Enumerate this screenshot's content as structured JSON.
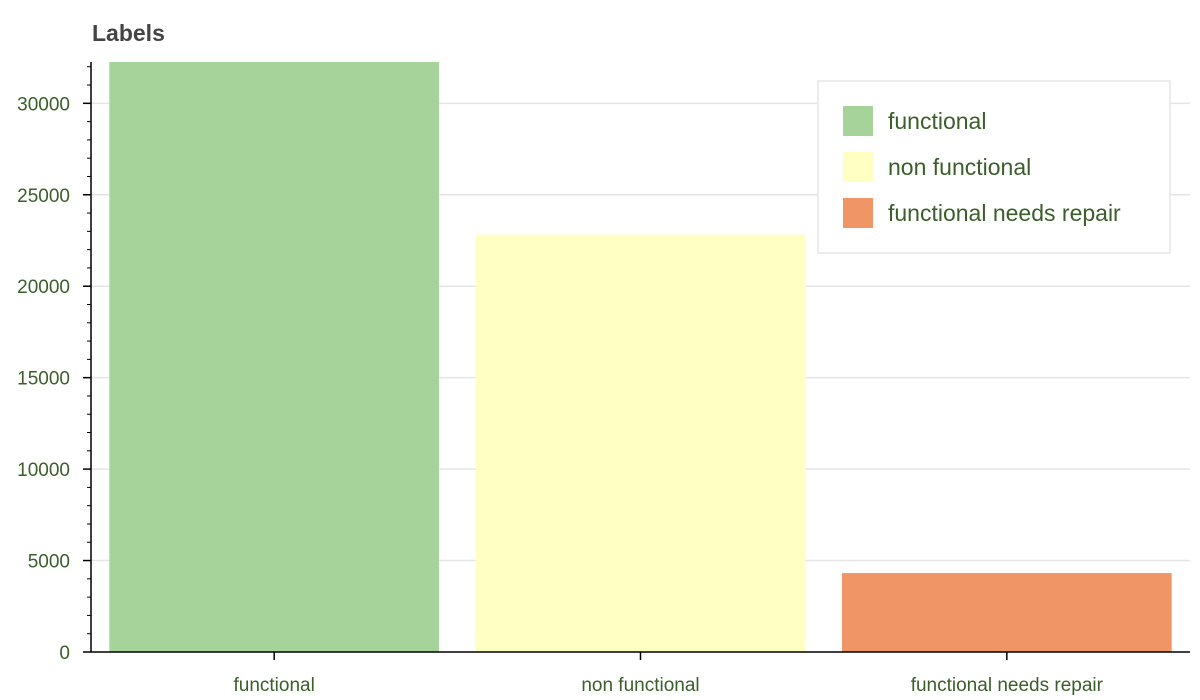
{
  "chart_data": {
    "type": "bar",
    "title": "Labels",
    "xlabel": "",
    "ylabel": "",
    "categories": [
      "functional",
      "non functional",
      "functional needs repair"
    ],
    "values": [
      32259,
      22824,
      4317
    ],
    "colors": [
      "#a6d39a",
      "#ffffc4",
      "#f09566"
    ],
    "ylim": [
      0,
      32259
    ],
    "yticks": [
      0,
      5000,
      10000,
      15000,
      20000,
      25000,
      30000
    ],
    "grid": true,
    "legend": {
      "placement": "top-right",
      "entries": [
        "functional",
        "non functional",
        "functional needs repair"
      ]
    }
  }
}
